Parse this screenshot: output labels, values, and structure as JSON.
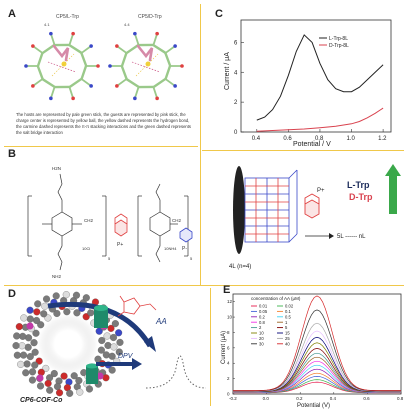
{
  "panels": {
    "A": {
      "label": "A",
      "mol_left": "CP5/L-Trp",
      "mol_right": "CP5/D-Trp",
      "dist_left": "4.1",
      "dist_right": "4.4",
      "caption": "The hosts are represented by pale green stick, the guests are represented by pink stick, the charge center is represented by yellow ball, the yellow dashed represents the hydrogen bond, the carmine dashed represents the π-π stacking interactions and the green dashed represents the salt bridge interaction"
    },
    "B": {
      "label": "B",
      "left_top": "H2N",
      "left_bottom": "NH2",
      "left_n": "5",
      "left_salt": "10Cl",
      "left_ch2": "CH2",
      "left_tag": "P+",
      "right_n": "5",
      "right_salt": "10NH4",
      "right_ch2": "CH2",
      "right_tag": "P-"
    },
    "C": {
      "label": "C",
      "ylabel": "Current / μA",
      "xlabel": "Potential / V",
      "legend": [
        "L-Trp-8L",
        "D-Trp-8L"
      ]
    },
    "BC": {
      "tag": "P+",
      "layers": "4L (n=4)",
      "range": "5L ------ nL",
      "l_label": "L-Trp",
      "d_label": "D-Trp"
    },
    "D": {
      "label": "D",
      "aa": "AA",
      "dpv": "DPV",
      "name": "CP6-COF-Co"
    },
    "E": {
      "label": "E",
      "ylabel": "Current (μA)",
      "xlabel": "Potential (V)",
      "legend_title": "concentration of AA (μM)",
      "legend": [
        "0.01",
        "0.02",
        "0.05",
        "0.1",
        "0.2",
        "0.5",
        "0.8",
        "1",
        "2",
        "5",
        "10",
        "15",
        "20",
        "25",
        "30",
        "40"
      ]
    }
  },
  "chart_data": [
    {
      "type": "line",
      "panel": "C",
      "xlabel": "Potential / V",
      "ylabel": "Current / μA",
      "xlim": [
        0.3,
        1.25
      ],
      "ylim": [
        0,
        7.5
      ],
      "xticks": [
        0.4,
        0.6,
        0.8,
        1.0,
        1.2
      ],
      "yticks": [
        0,
        2,
        4,
        6
      ],
      "series": [
        {
          "name": "L-Trp-8L",
          "color": "#222222",
          "x": [
            0.4,
            0.45,
            0.5,
            0.55,
            0.6,
            0.65,
            0.7,
            0.75,
            0.8,
            0.85,
            0.9,
            0.95,
            1.0,
            1.05,
            1.1,
            1.15,
            1.2
          ],
          "y": [
            0.8,
            1.0,
            1.5,
            2.4,
            3.8,
            5.4,
            6.5,
            6.0,
            4.6,
            3.5,
            2.9,
            2.7,
            2.7,
            3.0,
            3.5,
            4.0,
            4.5
          ]
        },
        {
          "name": "D-Trp-8L",
          "color": "#d9434f",
          "x": [
            0.4,
            0.5,
            0.6,
            0.7,
            0.8,
            0.9,
            1.0,
            1.05,
            1.1,
            1.15,
            1.2
          ],
          "y": [
            0.05,
            0.1,
            0.15,
            0.2,
            0.28,
            0.38,
            0.55,
            0.7,
            0.95,
            1.25,
            1.6
          ]
        }
      ]
    },
    {
      "type": "line",
      "panel": "E",
      "xlabel": "Potential (V)",
      "ylabel": "Current (μA)",
      "xlim": [
        -0.2,
        0.8
      ],
      "ylim": [
        0,
        13
      ],
      "xticks": [
        -0.2,
        0.0,
        0.2,
        0.4,
        0.6,
        0.8
      ],
      "yticks": [
        0,
        2,
        4,
        6,
        8,
        10,
        12
      ],
      "peak_x": 0.3,
      "series_names": [
        "0.01",
        "0.02",
        "0.05",
        "0.1",
        "0.2",
        "0.5",
        "0.8",
        "1",
        "2",
        "5",
        "10",
        "15",
        "20",
        "25",
        "30",
        "40"
      ],
      "peak_heights": [
        1.4,
        1.7,
        2.1,
        2.5,
        3.0,
        3.5,
        4.0,
        4.5,
        5.0,
        5.6,
        6.3,
        7.0,
        7.8,
        8.8,
        10.5,
        12.3
      ],
      "colors": [
        "#e6194b",
        "#3cb44b",
        "#4363d8",
        "#f58231",
        "#911eb4",
        "#42d4f4",
        "#f032e6",
        "#9a6324",
        "#469990",
        "#800000",
        "#808000",
        "#000075",
        "#e6beff",
        "#a9a9a9",
        "#333333",
        "#d62728"
      ]
    }
  ]
}
